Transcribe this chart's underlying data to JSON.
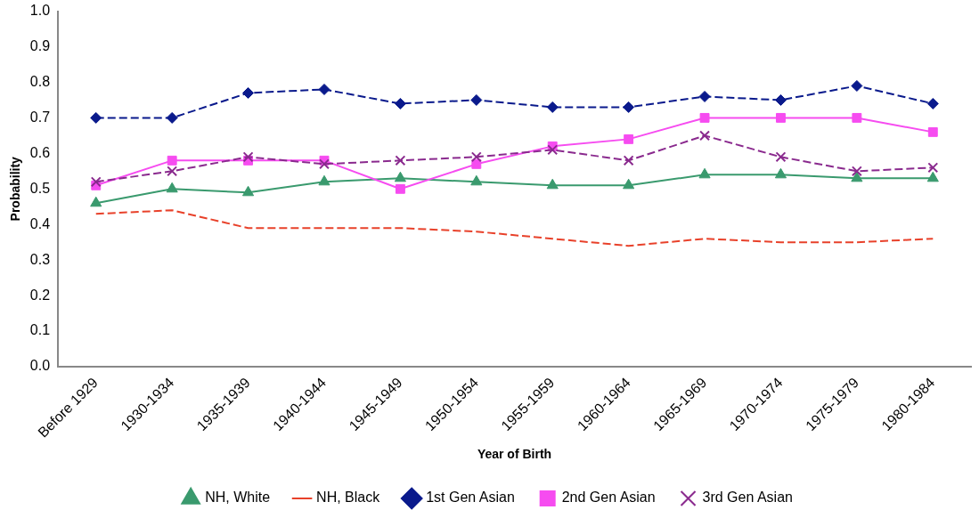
{
  "chart_data": {
    "type": "line",
    "xlabel": "Year of Birth",
    "ylabel": "Probability",
    "categories": [
      "Before 1929",
      "1930-1934",
      "1935-1939",
      "1940-1944",
      "1945-1949",
      "1950-1954",
      "1955-1959",
      "1960-1964",
      "1965-1969",
      "1970-1974",
      "1975-1979",
      "1980-1984"
    ],
    "ylim": [
      0,
      1
    ],
    "yticks": [
      {
        "value": 0,
        "label": "0.0"
      },
      {
        "value": 0.1,
        "label": "0.1"
      },
      {
        "value": 0.2,
        "label": "0.2"
      },
      {
        "value": 0.3,
        "label": "0.3"
      },
      {
        "value": 0.4,
        "label": "0.4"
      },
      {
        "value": 0.5,
        "label": "0.5"
      },
      {
        "value": 0.6,
        "label": "0.6"
      },
      {
        "value": 0.7,
        "label": "0.7"
      },
      {
        "value": 0.8,
        "label": "0.8"
      },
      {
        "value": 0.9,
        "label": "0.9"
      },
      {
        "value": 1,
        "label": "1.0"
      }
    ],
    "grid": false,
    "legend": "bottom",
    "series": [
      {
        "name": "NH, White",
        "color": "#3a9a6e",
        "marker": "triangle",
        "line_style": "solid",
        "values": [
          0.46,
          0.5,
          0.49,
          0.52,
          0.53,
          0.52,
          0.51,
          0.51,
          0.54,
          0.54,
          0.53,
          0.53
        ]
      },
      {
        "name": "NH, Black",
        "color": "#e8412a",
        "marker": "none",
        "line_style": "dashed",
        "values": [
          0.43,
          0.44,
          0.39,
          0.39,
          0.39,
          0.38,
          0.36,
          0.34,
          0.36,
          0.35,
          0.35,
          0.36
        ]
      },
      {
        "name": "1st Gen Asian",
        "color": "#0a1a8c",
        "marker": "diamond",
        "line_style": "dashed",
        "values": [
          0.7,
          0.7,
          0.77,
          0.78,
          0.74,
          0.75,
          0.73,
          0.73,
          0.76,
          0.75,
          0.79,
          0.74
        ]
      },
      {
        "name": "2nd Gen Asian",
        "color": "#f64cf0",
        "marker": "square",
        "line_style": "solid",
        "values": [
          0.51,
          0.58,
          0.58,
          0.58,
          0.5,
          0.57,
          0.62,
          0.64,
          0.7,
          0.7,
          0.7,
          0.66
        ]
      },
      {
        "name": "3rd Gen Asian",
        "color": "#8a2a8e",
        "marker": "cross",
        "line_style": "dashed",
        "values": [
          0.52,
          0.55,
          0.59,
          0.57,
          0.58,
          0.59,
          0.61,
          0.58,
          0.65,
          0.59,
          0.55,
          0.56
        ]
      }
    ]
  }
}
